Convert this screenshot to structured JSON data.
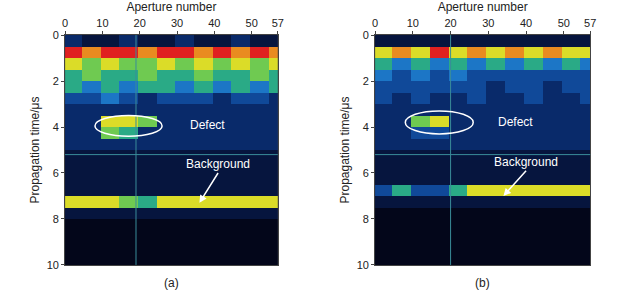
{
  "chart_data": [
    {
      "type": "heatmap",
      "panel": "(a)",
      "xlabel": "Aperture number",
      "ylabel": "Propagation time/μs",
      "xlim": [
        0,
        57
      ],
      "ylim": [
        10,
        0
      ],
      "xticks": [
        0,
        10,
        20,
        30,
        40,
        50,
        57
      ],
      "yticks": [
        0,
        2,
        4,
        6,
        8,
        10
      ],
      "x": [
        2,
        7,
        12,
        17,
        22,
        27,
        32,
        37,
        42,
        47,
        52,
        57
      ],
      "y": [
        0.25,
        0.75,
        1.25,
        1.75,
        2.25,
        2.75,
        3.25,
        3.75,
        4.25,
        4.75,
        5.25,
        5.75,
        6.25,
        6.75,
        7.25,
        7.75,
        8.25,
        8.75,
        9.25,
        9.75
      ],
      "z": [
        [
          2,
          1,
          1,
          2,
          1,
          1,
          2,
          1,
          1,
          2,
          1,
          1
        ],
        [
          9,
          8,
          9,
          9,
          8,
          9,
          9,
          8,
          9,
          8,
          9,
          8
        ],
        [
          7,
          6,
          7,
          6,
          6,
          7,
          6,
          7,
          6,
          7,
          6,
          7
        ],
        [
          5,
          6,
          5,
          5,
          6,
          5,
          5,
          6,
          5,
          5,
          6,
          5
        ],
        [
          5,
          4,
          5,
          4,
          5,
          5,
          4,
          5,
          4,
          5,
          4,
          5
        ],
        [
          3,
          3,
          4,
          3,
          2,
          3,
          3,
          3,
          2,
          3,
          3,
          2
        ],
        [
          2,
          2,
          2,
          2,
          2,
          2,
          2,
          2,
          2,
          2,
          2,
          2
        ],
        [
          2,
          2,
          7,
          7,
          6,
          2,
          2,
          2,
          2,
          2,
          2,
          2
        ],
        [
          2,
          2,
          6,
          5,
          2,
          2,
          2,
          2,
          2,
          2,
          2,
          2
        ],
        [
          2,
          2,
          2,
          2,
          2,
          2,
          2,
          2,
          2,
          2,
          2,
          2
        ],
        [
          1,
          1,
          1,
          1,
          1,
          1,
          1,
          1,
          1,
          1,
          1,
          1
        ],
        [
          1,
          1,
          1,
          1,
          1,
          1,
          1,
          1,
          1,
          1,
          1,
          1
        ],
        [
          1,
          1,
          1,
          1,
          1,
          1,
          1,
          1,
          1,
          1,
          1,
          1
        ],
        [
          1,
          1,
          1,
          1,
          1,
          1,
          1,
          1,
          1,
          1,
          1,
          1
        ],
        [
          7,
          7,
          7,
          6,
          5,
          7,
          7,
          7,
          7,
          7,
          7,
          7
        ],
        [
          1,
          1,
          1,
          1,
          1,
          1,
          1,
          1,
          1,
          1,
          1,
          1
        ],
        [
          0,
          0,
          0,
          0,
          0,
          0,
          0,
          0,
          0,
          0,
          0,
          0
        ],
        [
          0,
          0,
          0,
          0,
          0,
          0,
          0,
          0,
          0,
          0,
          0,
          0
        ],
        [
          0,
          0,
          0,
          0,
          0,
          0,
          0,
          0,
          0,
          0,
          0,
          0
        ],
        [
          0,
          0,
          0,
          0,
          0,
          0,
          0,
          0,
          0,
          0,
          0,
          0
        ]
      ],
      "cursor": {
        "x": 19,
        "y": 5.2
      },
      "defect_region": {
        "x": [
          8,
          26
        ],
        "y": [
          3.5,
          4.4
        ]
      },
      "annotations": [
        {
          "text": "Defect",
          "x": 33,
          "y": 3.9
        },
        {
          "text": "Background",
          "x": 41,
          "y": 6.0,
          "arrow_to": {
            "x": 36,
            "y": 7.3
          }
        }
      ]
    },
    {
      "type": "heatmap",
      "panel": "(b)",
      "xlabel": "Aperture number",
      "ylabel": "Propagation time/μs",
      "xlim": [
        0,
        57
      ],
      "ylim": [
        10,
        0
      ],
      "xticks": [
        0,
        10,
        20,
        30,
        40,
        50,
        57
      ],
      "yticks": [
        0,
        2,
        4,
        6,
        8,
        10
      ],
      "x": [
        2,
        7,
        12,
        17,
        22,
        27,
        32,
        37,
        42,
        47,
        52,
        57
      ],
      "y": [
        0.25,
        0.75,
        1.25,
        1.75,
        2.25,
        2.75,
        3.25,
        3.75,
        4.25,
        4.75,
        5.25,
        5.75,
        6.25,
        6.75,
        7.25,
        7.75,
        8.25,
        8.75,
        9.25,
        9.75
      ],
      "z": [
        [
          1,
          1,
          1,
          1,
          1,
          1,
          1,
          1,
          1,
          1,
          1,
          1
        ],
        [
          7,
          8,
          7,
          9,
          7,
          8,
          7,
          8,
          7,
          8,
          7,
          7
        ],
        [
          5,
          4,
          5,
          4,
          5,
          4,
          5,
          4,
          5,
          4,
          5,
          4
        ],
        [
          4,
          3,
          4,
          3,
          4,
          3,
          3,
          3,
          3,
          3,
          3,
          3
        ],
        [
          3,
          3,
          3,
          3,
          3,
          3,
          2,
          3,
          3,
          2,
          3,
          3
        ],
        [
          3,
          2,
          3,
          2,
          2,
          3,
          2,
          2,
          3,
          2,
          2,
          3
        ],
        [
          2,
          2,
          2,
          2,
          2,
          2,
          2,
          2,
          2,
          2,
          2,
          2
        ],
        [
          2,
          2,
          6,
          7,
          2,
          2,
          2,
          2,
          2,
          2,
          2,
          2
        ],
        [
          2,
          2,
          3,
          3,
          2,
          2,
          2,
          2,
          2,
          2,
          2,
          2
        ],
        [
          2,
          2,
          2,
          2,
          2,
          2,
          2,
          2,
          2,
          2,
          2,
          2
        ],
        [
          1,
          1,
          1,
          1,
          1,
          1,
          1,
          1,
          1,
          1,
          1,
          1
        ],
        [
          1,
          1,
          1,
          1,
          1,
          1,
          1,
          1,
          1,
          1,
          1,
          1
        ],
        [
          1,
          1,
          1,
          1,
          1,
          1,
          1,
          1,
          1,
          1,
          1,
          1
        ],
        [
          3,
          5,
          3,
          3,
          5,
          7,
          7,
          7,
          7,
          7,
          7,
          7
        ],
        [
          1,
          1,
          1,
          1,
          1,
          1,
          1,
          1,
          1,
          1,
          1,
          1
        ],
        [
          0,
          0,
          0,
          0,
          0,
          0,
          0,
          0,
          0,
          0,
          0,
          0
        ],
        [
          0,
          0,
          0,
          0,
          0,
          0,
          0,
          0,
          0,
          0,
          0,
          0
        ],
        [
          0,
          0,
          0,
          0,
          0,
          0,
          0,
          0,
          0,
          0,
          0,
          0
        ],
        [
          0,
          0,
          0,
          0,
          0,
          0,
          0,
          0,
          0,
          0,
          0,
          0
        ],
        [
          0,
          0,
          0,
          0,
          0,
          0,
          0,
          0,
          0,
          0,
          0,
          0
        ]
      ],
      "cursor": {
        "x": 20,
        "y": 5.2
      },
      "defect_region": {
        "x": [
          8,
          26
        ],
        "y": [
          3.3,
          4.3
        ]
      },
      "annotations": [
        {
          "text": "Defect",
          "x": 32,
          "y": 3.8
        },
        {
          "text": "Background",
          "x": 40,
          "y": 5.9,
          "arrow_to": {
            "x": 34,
            "y": 7.0
          }
        }
      ]
    }
  ]
}
